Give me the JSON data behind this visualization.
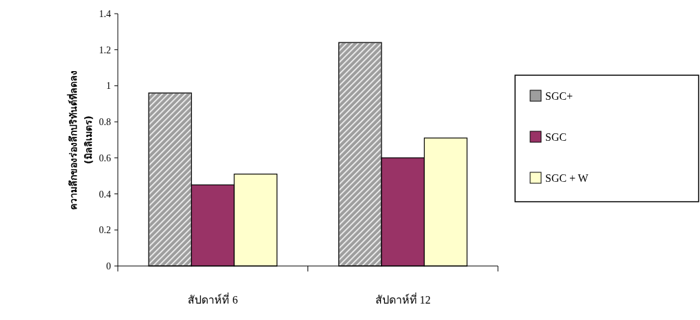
{
  "chart_data": {
    "type": "bar",
    "ylabel": "ความลึกของร่องลึกปริทันต์ที่ลดลง (มิลลิเมตร)",
    "categories": [
      "สัปดาห์ที่ 6",
      "สัปดาห์ที่ 12"
    ],
    "series": [
      {
        "name": "SGC+",
        "color": "#9e9e9e",
        "values": [
          0.96,
          1.24
        ]
      },
      {
        "name": "SGC",
        "color": "#993366",
        "values": [
          0.45,
          0.6
        ]
      },
      {
        "name": "SGC + W",
        "color": "#ffffcc",
        "values": [
          0.51,
          0.71
        ]
      }
    ],
    "ylim": [
      0,
      1.4
    ],
    "yticks": [
      0,
      0.2,
      0.4,
      0.6,
      0.8,
      1,
      1.2,
      1.4
    ],
    "grid": false,
    "legend": "right"
  }
}
